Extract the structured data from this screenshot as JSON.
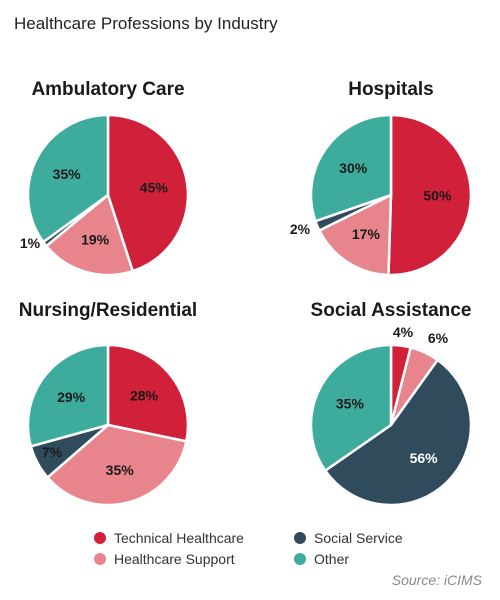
{
  "title": "Healthcare Professions by Industry",
  "source": "Source: iCIMS",
  "colors": {
    "technical_healthcare": "#d0203a",
    "healthcare_support": "#e8848c",
    "social_service": "#2f4b5c",
    "other": "#3eac9c"
  },
  "legend": [
    {
      "label": "Technical Healthcare",
      "color": "#d0203a"
    },
    {
      "label": "Social Service",
      "color": "#2f4b5c"
    },
    {
      "label": "Healthcare Support",
      "color": "#e8848c"
    },
    {
      "label": "Other",
      "color": "#3eac9c"
    }
  ],
  "chart_data": [
    {
      "type": "pie",
      "title": "Ambulatory Care",
      "slices": [
        {
          "name": "Technical Healthcare",
          "value": 45,
          "label": "45%"
        },
        {
          "name": "Healthcare Support",
          "value": 19,
          "label": "19%"
        },
        {
          "name": "Social Service",
          "value": 1,
          "label": "1%"
        },
        {
          "name": "Other",
          "value": 35,
          "label": "35%"
        }
      ]
    },
    {
      "type": "pie",
      "title": "Hospitals",
      "slices": [
        {
          "name": "Technical Healthcare",
          "value": 50,
          "label": "50%"
        },
        {
          "name": "Healthcare Support",
          "value": 17,
          "label": "17%"
        },
        {
          "name": "Social Service",
          "value": 2,
          "label": "2%"
        },
        {
          "name": "Other",
          "value": 30,
          "label": "30%"
        }
      ]
    },
    {
      "type": "pie",
      "title": "Nursing/Residential",
      "slices": [
        {
          "name": "Technical Healthcare",
          "value": 28,
          "label": "28%"
        },
        {
          "name": "Healthcare Support",
          "value": 35,
          "label": "35%"
        },
        {
          "name": "Social Service",
          "value": 7,
          "label": "7%"
        },
        {
          "name": "Other",
          "value": 29,
          "label": "29%"
        }
      ]
    },
    {
      "type": "pie",
      "title": "Social Assistance",
      "slices": [
        {
          "name": "Technical Healthcare",
          "value": 4,
          "label": "4%"
        },
        {
          "name": "Healthcare Support",
          "value": 6,
          "label": "6%"
        },
        {
          "name": "Social Service",
          "value": 56,
          "label": "56%"
        },
        {
          "name": "Other",
          "value": 35,
          "label": "35%"
        }
      ]
    }
  ]
}
